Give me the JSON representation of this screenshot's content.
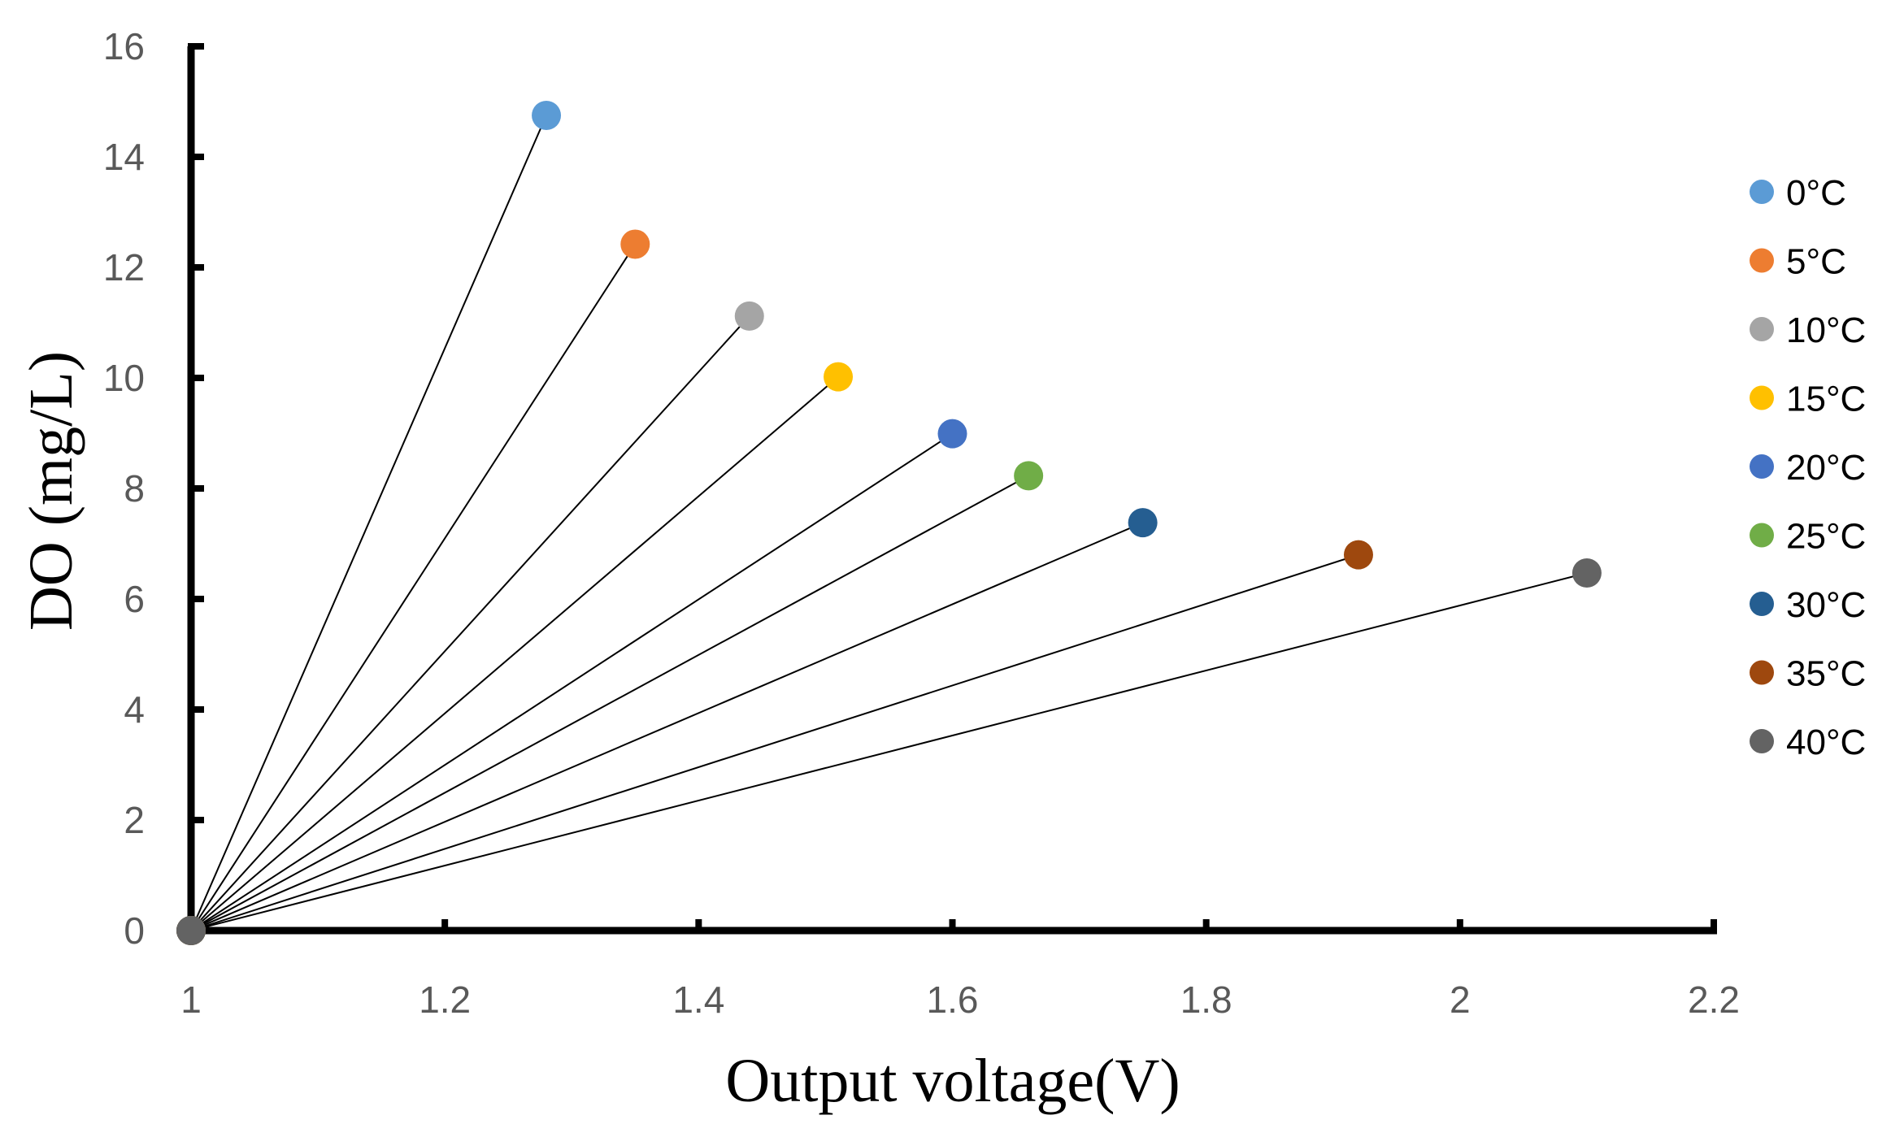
{
  "chart_data": {
    "type": "scatter",
    "title": "",
    "xlabel": "Output voltage(V)",
    "ylabel": "DO (mg/L)",
    "xlim": [
      1,
      2.2
    ],
    "ylim": [
      0,
      16
    ],
    "xticks": [
      1,
      1.2,
      1.4,
      1.6,
      1.8,
      2,
      2.2
    ],
    "xtick_labels": [
      "1",
      "1.2",
      "1.4",
      "1.6",
      "1.8",
      "2",
      "2.2"
    ],
    "yticks": [
      0,
      2,
      4,
      6,
      8,
      10,
      12,
      14,
      16
    ],
    "ytick_labels": [
      "0",
      "2",
      "4",
      "6",
      "8",
      "10",
      "12",
      "14",
      "16"
    ],
    "grid": false,
    "legend_position": "right",
    "series": [
      {
        "name": "0°C",
        "color": "#5B9BD5",
        "points": [
          [
            1,
            0
          ],
          [
            1.28,
            14.75
          ]
        ]
      },
      {
        "name": "5°C",
        "color": "#ED7D31",
        "points": [
          [
            1,
            0
          ],
          [
            1.35,
            12.42
          ]
        ]
      },
      {
        "name": "10°C",
        "color": "#A5A5A5",
        "points": [
          [
            1,
            0
          ],
          [
            1.44,
            11.12
          ]
        ]
      },
      {
        "name": "15°C",
        "color": "#FFC000",
        "points": [
          [
            1,
            0
          ],
          [
            1.51,
            10.02
          ]
        ]
      },
      {
        "name": "20°C",
        "color": "#4472C4",
        "points": [
          [
            1,
            0
          ],
          [
            1.6,
            8.99
          ]
        ]
      },
      {
        "name": "25°C",
        "color": "#70AD47",
        "points": [
          [
            1,
            0
          ],
          [
            1.66,
            8.23
          ]
        ]
      },
      {
        "name": "30°C",
        "color": "#255E91",
        "points": [
          [
            1,
            0
          ],
          [
            1.75,
            7.38
          ]
        ]
      },
      {
        "name": "35°C",
        "color": "#9E480E",
        "points": [
          [
            1,
            0
          ],
          [
            1.92,
            6.8
          ]
        ]
      },
      {
        "name": "40°C",
        "color": "#636363",
        "points": [
          [
            1,
            0
          ],
          [
            2.1,
            6.47
          ]
        ]
      }
    ]
  }
}
